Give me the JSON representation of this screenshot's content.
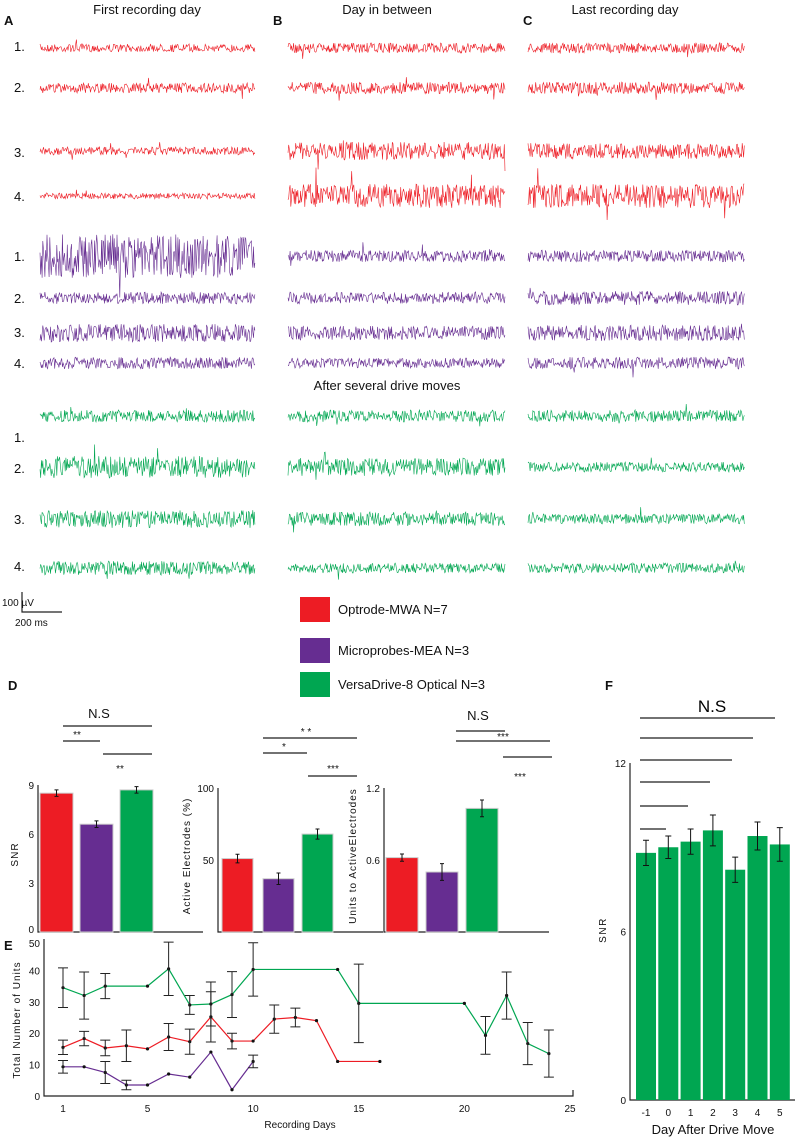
{
  "colors": {
    "red": "#ed1c24",
    "purple": "#662d91",
    "green": "#00a651"
  },
  "panels": {
    "A": "A",
    "B": "B",
    "C": "C",
    "D": "D",
    "E": "E",
    "F": "F"
  },
  "titles": [
    "First recording day",
    "Day in between",
    "Last recording day"
  ],
  "row_labels": [
    "1.",
    "2.",
    "3.",
    "4."
  ],
  "after_moves": "After several drive moves",
  "scale": {
    "v": "100 µV",
    "t": "200 ms"
  },
  "legend": [
    "Optrode-MWA N=7",
    "Microprobes-MEA N=3",
    "VersaDrive-8 Optical N=3"
  ],
  "chart_data": [
    {
      "type": "bar",
      "panel": "D",
      "ylabel": "SNR",
      "ylim": [
        0,
        9
      ],
      "yticks": [
        "0",
        "3",
        "6",
        "9"
      ],
      "series": [
        "Optrode-MWA",
        "Microprobes-MEA",
        "VersaDrive-8 Optical"
      ],
      "values": [
        8.5,
        6.6,
        8.7
      ],
      "errors": [
        0.2,
        0.2,
        0.2
      ],
      "sig": [
        "N.S",
        "**",
        "**"
      ]
    },
    {
      "type": "bar",
      "panel": "D",
      "ylabel": "Active Electrodes (%)",
      "ylim": [
        0,
        100
      ],
      "yticks": [
        "50",
        "100"
      ],
      "values": [
        51,
        37,
        68
      ],
      "errors": [
        3,
        4,
        3.5
      ],
      "sig": [
        "* *",
        "*",
        "***"
      ]
    },
    {
      "type": "bar",
      "panel": "D",
      "ylabel": "Units to ActiveElectrodes",
      "ylim": [
        0,
        1.2
      ],
      "yticks": [
        "0.6",
        "1.2"
      ],
      "values": [
        0.62,
        0.5,
        1.03
      ],
      "errors": [
        0.03,
        0.07,
        0.07
      ],
      "sig": [
        "N.S",
        "***",
        "***"
      ]
    },
    {
      "type": "line",
      "panel": "E",
      "xlabel": "Recording Days",
      "ylabel": "Total Number of Units",
      "xlim": [
        0,
        25
      ],
      "ylim": [
        0,
        50
      ],
      "xticks": [
        "1",
        "5",
        "10",
        "15",
        "20",
        "25"
      ],
      "yticks": [
        "0",
        "10",
        "20",
        "30",
        "40",
        "50"
      ],
      "series": [
        {
          "name": "VersaDrive-8 Optical",
          "x": [
            1,
            2,
            3,
            5,
            6,
            7,
            8,
            9,
            10,
            14,
            15,
            20,
            21,
            22,
            23,
            24
          ],
          "y": [
            34.5,
            32,
            35,
            35,
            40.5,
            29,
            29.3,
            32.3,
            40.3,
            40.3,
            29.5,
            29.5,
            19.3,
            32,
            16.7,
            13.5
          ],
          "err": [
            6.3,
            7.5,
            4,
            0,
            8.5,
            3,
            7,
            7.3,
            8.5,
            0,
            12.5,
            0,
            6,
            7.5,
            6.7,
            7.5
          ]
        },
        {
          "name": "Optrode-MWA",
          "x": [
            1,
            2,
            3,
            4,
            5,
            6,
            7,
            8,
            9,
            10,
            11,
            12,
            13,
            14,
            16
          ],
          "y": [
            15.5,
            18.3,
            15.3,
            16,
            15,
            18.8,
            17.3,
            25.2,
            17.5,
            17.5,
            24.5,
            25,
            24,
            11,
            11
          ],
          "err": [
            2.3,
            2.3,
            2.5,
            5,
            0,
            4.3,
            4,
            8,
            2.5,
            0,
            4.5,
            3,
            0,
            0,
            0
          ]
        },
        {
          "name": "Microprobes-MEA",
          "x": [
            1,
            2,
            3,
            4,
            5,
            6,
            7,
            8,
            9,
            10
          ],
          "y": [
            9.3,
            9.3,
            7.5,
            3.5,
            3.5,
            7,
            6,
            14,
            2,
            11
          ],
          "err": [
            2,
            0,
            3.5,
            1.5,
            0,
            0,
            0,
            0,
            0,
            2
          ]
        }
      ]
    },
    {
      "type": "bar",
      "panel": "F",
      "xlabel": "Day After Drive Move",
      "ylabel": "SNR",
      "ylim": [
        0,
        12
      ],
      "yticks": [
        "0",
        "6",
        "12"
      ],
      "categories": [
        "-1",
        "0",
        "1",
        "2",
        "3",
        "4",
        "5"
      ],
      "values": [
        8.8,
        9.0,
        9.2,
        9.6,
        8.2,
        9.4,
        9.1
      ],
      "errors": [
        0.45,
        0.4,
        0.45,
        0.55,
        0.45,
        0.5,
        0.6
      ],
      "sig": "N.S"
    }
  ]
}
